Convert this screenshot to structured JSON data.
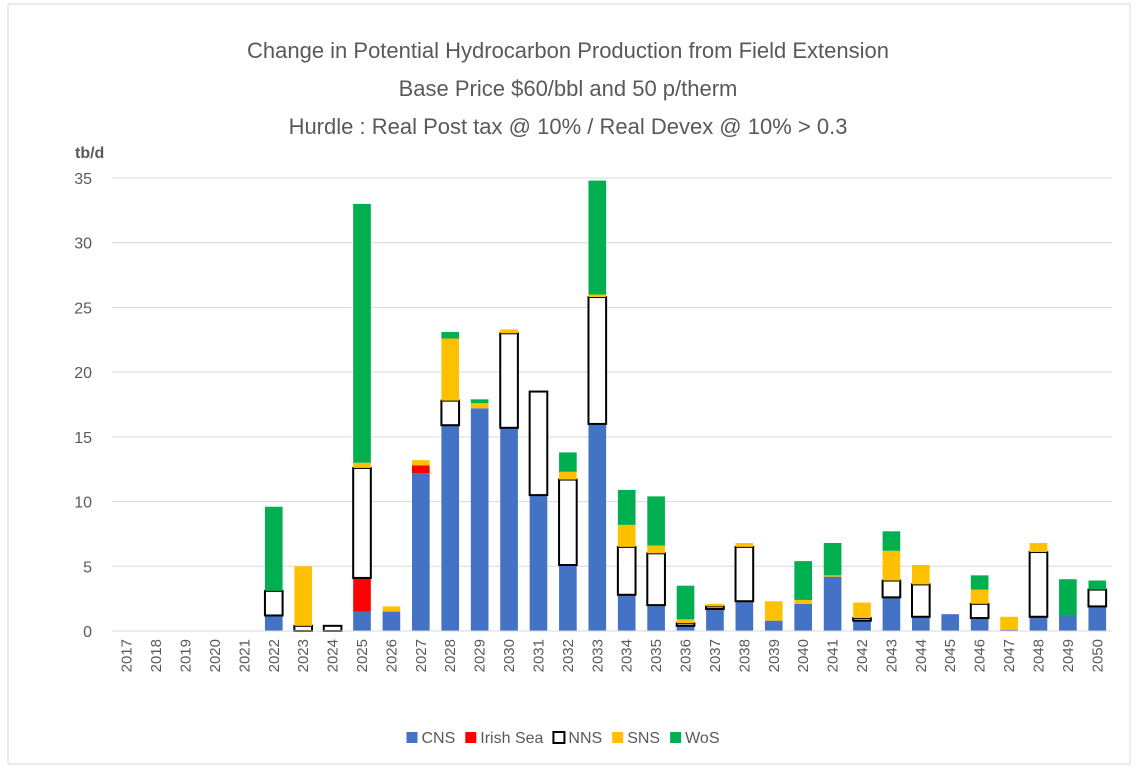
{
  "chart_data": {
    "type": "stacked_bar",
    "title": [
      "Change in Potential Hydrocarbon Production from Field Extension",
      "Base Price $60/bbl and 50 p/therm",
      "Hurdle : Real Post tax @ 10% / Real Devex @ 10% > 0.3"
    ],
    "ylabel": "tb/d",
    "categories": [
      "2017",
      "2018",
      "2019",
      "2020",
      "2021",
      "2022",
      "2023",
      "2024",
      "2025",
      "2026",
      "2027",
      "2028",
      "2029",
      "2030",
      "2031",
      "2032",
      "2033",
      "2034",
      "2035",
      "2036",
      "2037",
      "2038",
      "2039",
      "2040",
      "2041",
      "2042",
      "2043",
      "2044",
      "2045",
      "2046",
      "2047",
      "2048",
      "2049",
      "2050"
    ],
    "series": [
      {
        "name": "CNS",
        "color": "#4472c4",
        "values": [
          0,
          0,
          0,
          0,
          0,
          1.2,
          0,
          0,
          1.5,
          1.5,
          12.2,
          15.9,
          17.2,
          15.7,
          10.5,
          5.1,
          16.0,
          2.8,
          2.0,
          0.4,
          1.7,
          2.3,
          0.8,
          2.1,
          4.2,
          0.8,
          2.6,
          1.1,
          1.3,
          1.0,
          0.1,
          1.1,
          1.2,
          1.9
        ]
      },
      {
        "name": "Irish Sea",
        "color": "#ff0000",
        "values": [
          0,
          0,
          0,
          0,
          0,
          0,
          0,
          0,
          2.6,
          0,
          0.6,
          0,
          0,
          0,
          0,
          0,
          0,
          0,
          0,
          0,
          0,
          0,
          0,
          0,
          0,
          0,
          0,
          0,
          0,
          0,
          0,
          0,
          0,
          0
        ]
      },
      {
        "name": "NNS",
        "color": "#ffffff",
        "edgecolor": "#000000",
        "values": [
          0,
          0,
          0,
          0,
          0,
          1.9,
          0.4,
          0.4,
          8.5,
          0,
          0,
          1.9,
          0,
          7.3,
          8.0,
          6.6,
          9.8,
          3.7,
          4.0,
          0.2,
          0.2,
          4.2,
          0,
          0,
          0,
          0.2,
          1.3,
          2.5,
          0,
          1.1,
          0,
          5.0,
          0,
          1.3
        ]
      },
      {
        "name": "SNS",
        "color": "#ffc000",
        "values": [
          0,
          0,
          0,
          0,
          0,
          0,
          4.6,
          0,
          0.4,
          0.4,
          0.4,
          4.8,
          0.4,
          0.3,
          0,
          0.6,
          0.2,
          1.7,
          0.6,
          0.3,
          0.2,
          0.3,
          1.5,
          0.3,
          0.1,
          1.2,
          2.3,
          1.5,
          0,
          1.1,
          1.0,
          0.7,
          0,
          0
        ]
      },
      {
        "name": "WoS",
        "color": "#00b050",
        "values": [
          0,
          0,
          0,
          0,
          0,
          6.5,
          0,
          0,
          20.0,
          0,
          0,
          0.5,
          0.3,
          0,
          0,
          1.5,
          8.8,
          2.7,
          3.8,
          2.6,
          0,
          0,
          0,
          3.0,
          2.5,
          0,
          1.5,
          0,
          0,
          1.1,
          0,
          0,
          2.8,
          0.7
        ]
      }
    ],
    "ylim": [
      0,
      35
    ],
    "yticks": [
      0,
      5,
      10,
      15,
      20,
      25,
      30,
      35
    ],
    "grid": true,
    "legend": "bottom"
  }
}
